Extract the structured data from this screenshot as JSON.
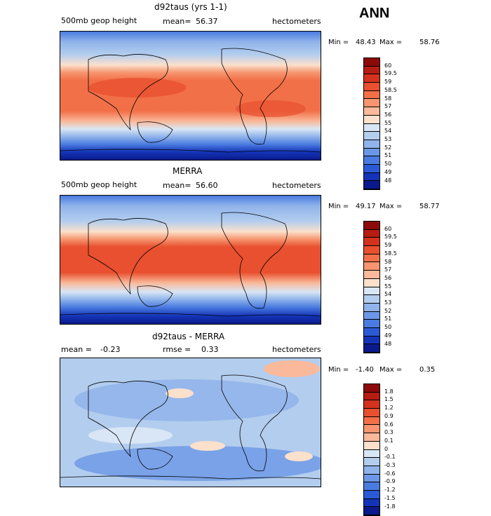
{
  "season": "ANN",
  "panels": [
    {
      "title": "d92taus (yrs 1-1)",
      "left_label": "500mb geop height",
      "mean_label": "mean=",
      "mean_value": "56.37",
      "units": "hectometers",
      "min_label": "Min =",
      "min_value": "48.43",
      "max_label": "Max =",
      "max_value": "58.76",
      "ticks": [
        "60",
        "59.5",
        "59",
        "58.5",
        "58",
        "57",
        "56",
        "55",
        "54",
        "53",
        "52",
        "51",
        "50",
        "49",
        "48"
      ]
    },
    {
      "title": "MERRA",
      "left_label": "500mb geop height",
      "mean_label": "mean=",
      "mean_value": "56.60",
      "units": "hectometers",
      "min_label": "Min =",
      "min_value": "49.17",
      "max_label": "Max =",
      "max_value": "58.77",
      "ticks": [
        "60",
        "59.5",
        "59",
        "58.5",
        "58",
        "57",
        "56",
        "55",
        "54",
        "53",
        "52",
        "51",
        "50",
        "49",
        "48"
      ]
    },
    {
      "title": "d92taus - MERRA",
      "left_label": "mean =",
      "left_value": "-0.23",
      "mean_label": "rmse =",
      "mean_value": "0.33",
      "units": "hectometers",
      "min_label": "Min =",
      "min_value": "-1.40",
      "max_label": "Max =",
      "max_value": "0.35",
      "ticks": [
        "1.8",
        "1.5",
        "1.2",
        "0.9",
        "0.6",
        "0.3",
        "0.1",
        "0",
        "-0.1",
        "-0.3",
        "-0.6",
        "-0.9",
        "-1.2",
        "-1.5",
        "-1.8"
      ]
    }
  ],
  "colors": {
    "scale": [
      "#8c0a0a",
      "#b51c12",
      "#d3321d",
      "#e8502f",
      "#f27048",
      "#f6956f",
      "#f9b99a",
      "#fbe0cc",
      "#d8e6f5",
      "#b3cdee",
      "#8fb3ea",
      "#6b97e6",
      "#4a7be0",
      "#2b5ad6",
      "#1434b8",
      "#0a1a8a"
    ]
  }
}
